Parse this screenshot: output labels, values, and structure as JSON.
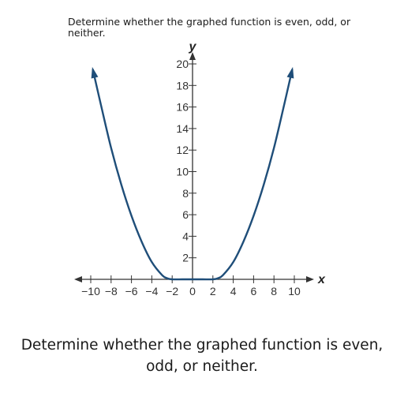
{
  "question_top": "Determine whether the graphed function is even, odd, or neither.",
  "question_bottom": "Determine whether the graphed function is even, odd, or neither.",
  "colors": {
    "curve": "#1f4e79",
    "axis": "#333333"
  },
  "chart_data": {
    "type": "line",
    "title": "",
    "xlabel": "x",
    "ylabel": "y",
    "xlim": [
      -11,
      11
    ],
    "ylim": [
      0,
      21
    ],
    "x_ticks": [
      -10,
      -8,
      -6,
      -4,
      -2,
      0,
      2,
      4,
      6,
      8,
      10
    ],
    "x_tick_labels": [
      "−10",
      "−8",
      "−6",
      "−4",
      "−2",
      "0",
      "2",
      "4",
      "6",
      "8",
      "10"
    ],
    "y_ticks": [
      2,
      4,
      6,
      8,
      10,
      12,
      14,
      16,
      18,
      20
    ],
    "y_tick_labels": [
      "2",
      "4",
      "6",
      "8",
      "10",
      "12",
      "14",
      "16",
      "18",
      "20"
    ],
    "grid": false,
    "series": [
      {
        "name": "",
        "x": [
          -9.8,
          -9,
          -8,
          -7,
          -6,
          -5,
          -4,
          -3,
          -2.5,
          -2,
          -1,
          0,
          1,
          2,
          2.5,
          3,
          4,
          5,
          6,
          7,
          8,
          9,
          9.8
        ],
        "y": [
          19.5,
          16.2,
          12.2,
          8.8,
          5.9,
          3.5,
          1.6,
          0.4,
          0.1,
          0,
          0,
          0,
          0,
          0,
          0.1,
          0.4,
          1.6,
          3.5,
          5.9,
          8.8,
          12.2,
          16.2,
          19.5
        ]
      }
    ]
  }
}
